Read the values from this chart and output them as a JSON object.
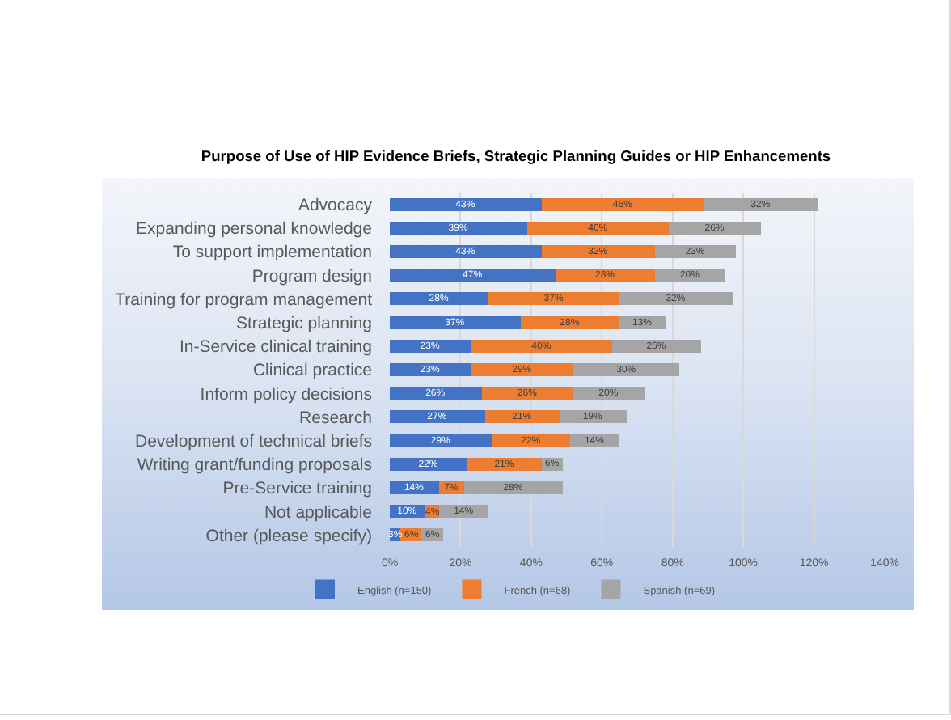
{
  "chart_data": {
    "type": "bar",
    "orientation": "horizontal",
    "stacked": true,
    "title": "Purpose of Use of HIP Evidence Briefs, Strategic Planning Guides or HIP Enhancements",
    "categories": [
      "Advocacy",
      "Expanding personal knowledge",
      "To support implementation",
      "Program design",
      "Training for program management",
      "Strategic planning",
      "In-Service clinical training",
      "Clinical practice",
      "Inform policy decisions",
      "Research",
      "Development of technical briefs",
      "Writing grant/funding proposals",
      "Pre-Service training",
      "Not applicable",
      "Other (please specify)"
    ],
    "series": [
      {
        "name": "English (n=150)",
        "color": "#4472c4",
        "values": [
          43,
          39,
          43,
          47,
          28,
          37,
          23,
          23,
          26,
          27,
          29,
          22,
          14,
          10,
          3
        ],
        "value_labels": [
          "43%",
          "39%",
          "43%",
          "47%",
          "28%",
          "37%",
          "23%",
          "23%",
          "26%",
          "27%",
          "29%",
          "22%",
          "14%",
          "10%",
          "3%"
        ]
      },
      {
        "name": "French (n=68)",
        "color": "#ed7d31",
        "values": [
          46,
          40,
          32,
          28,
          37,
          28,
          40,
          29,
          26,
          21,
          22,
          21,
          7,
          4,
          6
        ],
        "value_labels": [
          "46%",
          "40%",
          "32%",
          "28%",
          "37%",
          "28%",
          "40%",
          "29%",
          "26%",
          "21%",
          "22%",
          "21%",
          "7%",
          "4%",
          "6%"
        ]
      },
      {
        "name": "Spanish (n=69)",
        "color": "#a5a5a5",
        "values": [
          32,
          26,
          23,
          20,
          32,
          13,
          25,
          30,
          20,
          19,
          14,
          6,
          28,
          14,
          6
        ],
        "value_labels": [
          "32%",
          "26%",
          "23%",
          "20%",
          "32%",
          "13%",
          "25%",
          "30%",
          "20%",
          "19%",
          "14%",
          "6%",
          "28%",
          "14%",
          "6%"
        ]
      }
    ],
    "xlim": [
      0,
      140
    ],
    "xticks": [
      {
        "value": 0,
        "label": "0%"
      },
      {
        "value": 20,
        "label": "20%"
      },
      {
        "value": 40,
        "label": "40%"
      },
      {
        "value": 60,
        "label": "60%"
      },
      {
        "value": 80,
        "label": "80%"
      },
      {
        "value": 100,
        "label": "100%"
      },
      {
        "value": 120,
        "label": "120%"
      },
      {
        "value": 140,
        "label": "140%"
      }
    ],
    "grid": "x",
    "legend": "bottom"
  }
}
